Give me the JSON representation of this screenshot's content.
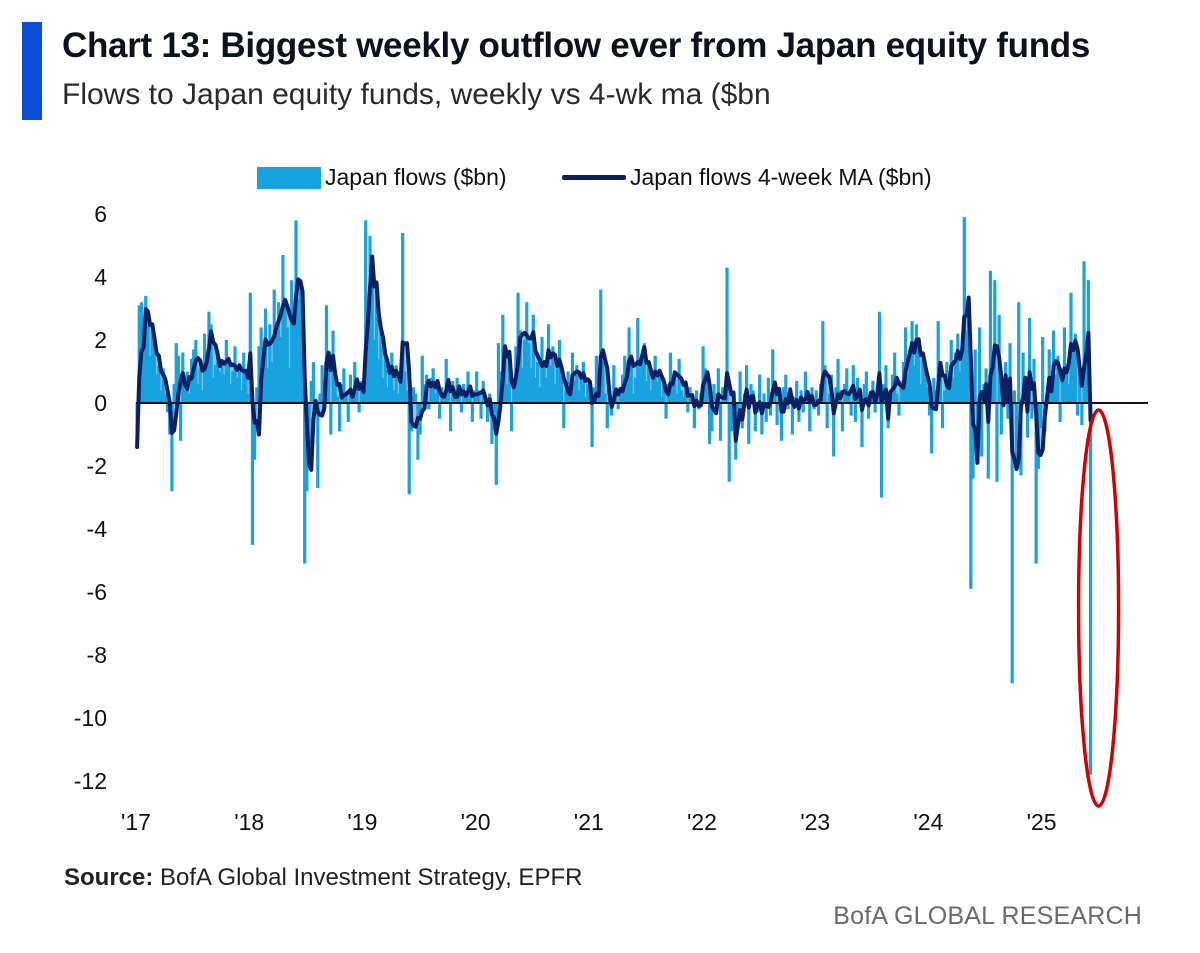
{
  "header": {
    "title": "Chart 13: Biggest weekly outflow ever from Japan equity funds",
    "subtitle": "Flows to Japan equity funds, weekly vs 4-wk ma ($bn"
  },
  "footer": {
    "source_label": "Source:",
    "source_text": " BofA Global Investment Strategy, EPFR",
    "brand": "BofA GLOBAL RESEARCH"
  },
  "colors": {
    "bars": "#17a2e0",
    "ma_line": "#0b1f63",
    "highlight": "#d40000",
    "title_bar": "#0a4fd6"
  },
  "chart_data": {
    "type": "bar",
    "legend_position": "top",
    "grid": false,
    "ylim": [
      -12,
      6
    ],
    "yticks": [
      "6",
      "4",
      "2",
      "0",
      "-2",
      "-4",
      "-6",
      "-8",
      "-10",
      "-12"
    ],
    "xticks": [
      "'17",
      "'18",
      "'19",
      "'20",
      "'21",
      "'22",
      "'23",
      "'24",
      "'25"
    ],
    "annotation": "red ellipse highlighting the latest weekly outflow",
    "series": [
      {
        "name": "Japan flows ($bn)",
        "type": "bar",
        "years": [
          {
            "year": "'17",
            "values": [
              -1.4,
              3.1,
              3.2,
              2.2,
              3.4,
              2.8,
              1.5,
              2.3,
              1.6,
              0.9,
              1.2,
              0.4,
              1.1,
              0.3,
              -0.3,
              -1.0,
              -2.8,
              0.6,
              1.9,
              1.5,
              -1.2,
              1.6,
              0.4,
              1.0,
              0.3,
              1.4,
              1.7,
              2.0,
              0.6,
              1.1,
              0.4,
              2.2,
              1.5,
              2.9,
              2.5,
              0.8,
              1.2,
              1.7,
              1.0,
              1.4,
              0.9,
              2.0,
              1.3,
              0.6,
              1.0,
              1.8,
              0.8,
              1.2,
              0.4,
              1.6,
              0.9,
              0.3
            ]
          },
          {
            "year": "'18",
            "values": [
              3.5,
              -4.5,
              -1.8,
              0.5,
              1.8,
              2.4,
              0.9,
              3.0,
              1.1,
              2.5,
              1.3,
              3.6,
              2.3,
              3.2,
              2.1,
              4.7,
              3.1,
              2.4,
              1.1,
              3.9,
              2.7,
              5.8,
              3.3,
              3.7,
              1.4,
              -5.1,
              -2.8,
              -1.3,
              0.7,
              1.3,
              -0.4,
              -2.7,
              0.3,
              1.2,
              0.5,
              3.1,
              1.6,
              -1.0,
              2.3,
              0.8,
              0.2,
              -0.9,
              0.6,
              1.1,
              0.3,
              -0.6,
              0.9,
              0.2,
              1.3,
              0.6,
              -0.3,
              0.7
            ]
          },
          {
            "year": "'19",
            "values": [
              0.4,
              5.8,
              3.2,
              5.3,
              4.3,
              2.0,
              3.7,
              1.4,
              2.4,
              0.8,
              1.6,
              0.5,
              0.9,
              1.6,
              0.4,
              1.2,
              0.3,
              0.8,
              5.4,
              1.0,
              0.4,
              -2.9,
              -0.9,
              0.5,
              0.3,
              -1.8,
              -1.0,
              1.5,
              0.6,
              0.9,
              -0.2,
              0.8,
              1.1,
              0.3,
              0.6,
              -0.5,
              0.5,
              0.2,
              1.4,
              0.8,
              -0.9,
              0.7,
              0.2,
              0.8,
              0.4,
              -0.3,
              0.6,
              0.2,
              1.0,
              0.3,
              -0.6,
              0.4
            ]
          },
          {
            "year": "'20",
            "values": [
              1.0,
              0.4,
              -0.5,
              0.7,
              0.1,
              -0.6,
              0.3,
              -1.3,
              -0.3,
              -2.6,
              1.9,
              1.0,
              2.8,
              1.5,
              0.6,
              1.6,
              -0.9,
              0.7,
              1.8,
              3.5,
              2.3,
              1.1,
              2.0,
              3.2,
              1.9,
              1.1,
              2.8,
              0.8,
              1.3,
              0.5,
              2.1,
              1.3,
              0.8,
              2.5,
              1.2,
              1.8,
              0.6,
              1.1,
              2.0,
              0.8,
              -0.8,
              0.4,
              1.0,
              0.5,
              1.6,
              0.7,
              1.2,
              0.4,
              0.9,
              1.3,
              0.2,
              0.6
            ]
          },
          {
            "year": "'21",
            "values": [
              0.6,
              -1.4,
              0.5,
              1.5,
              0.3,
              3.6,
              1.3,
              0.3,
              -0.8,
              0.4,
              -0.4,
              1.2,
              0.5,
              -0.2,
              0.3,
              0.9,
              1.5,
              0.6,
              2.4,
              1.4,
              0.3,
              0.8,
              2.7,
              1.1,
              1.4,
              1.9,
              0.7,
              1.2,
              0.4,
              0.9,
              1.5,
              0.7,
              1.0,
              0.2,
              0.8,
              -0.5,
              0.6,
              1.6,
              0.7,
              1.0,
              0.3,
              1.4,
              0.4,
              0.2,
              0.6,
              -0.3,
              0.5,
              0.2,
              -0.8,
              0.4,
              -0.2,
              0.3
            ]
          },
          {
            "year": "'22",
            "values": [
              1.8,
              1.1,
              0.7,
              -1.3,
              -0.9,
              0.6,
              0.3,
              1.1,
              -1.2,
              0.5,
              0.2,
              4.3,
              -2.5,
              -0.9,
              0.4,
              -1.8,
              -0.5,
              1.0,
              -0.8,
              0.3,
              1.2,
              -1.3,
              0.6,
              0.4,
              -0.9,
              -0.3,
              0.9,
              -1.0,
              0.3,
              -0.6,
              0.8,
              -0.4,
              1.7,
              0.5,
              -0.7,
              0.3,
              -1.2,
              0.5,
              0.9,
              -0.2,
              0.5,
              -1.0,
              0.2,
              0.7,
              -0.6,
              0.4,
              -0.3,
              1.0,
              0.3,
              -0.9,
              0.5,
              -0.2
            ]
          },
          {
            "year": "'23",
            "values": [
              0.4,
              -0.4,
              0.6,
              2.6,
              1.2,
              -0.8,
              0.3,
              0.9,
              -1.7,
              0.5,
              1.4,
              0.4,
              -0.9,
              0.6,
              1.1,
              0.3,
              -0.4,
              1.2,
              -0.6,
              0.8,
              0.3,
              -1.4,
              0.6,
              1.0,
              -0.5,
              0.2,
              0.7,
              -0.3,
              0.5,
              2.9,
              -3.0,
              0.6,
              1.2,
              -0.8,
              0.4,
              0.9,
              1.6,
              0.3,
              -0.4,
              0.7,
              1.3,
              2.4,
              0.9,
              1.7,
              2.6,
              1.2,
              2.5,
              1.8,
              0.6,
              1.4,
              1.0,
              0.5
            ]
          },
          {
            "year": "'24",
            "values": [
              -0.4,
              -1.6,
              0.8,
              0.4,
              2.6,
              1.3,
              -0.8,
              0.4,
              1.3,
              1.0,
              2.0,
              0.8,
              1.6,
              2.2,
              1.0,
              1.9,
              5.9,
              2.3,
              3.3,
              -5.9,
              -2.4,
              1.7,
              -1.0,
              2.4,
              -1.7,
              0.6,
              1.1,
              -2.4,
              4.2,
              1.6,
              3.9,
              -2.5,
              2.8,
              -1.0,
              0.4,
              1.3,
              -0.5,
              1.9,
              -8.9,
              0.4,
              -1.8,
              3.2,
              -2.3,
              1.6,
              0.7,
              -1.1,
              2.7,
              -0.5,
              1.4,
              -5.1,
              -2.1,
              -0.8
            ]
          },
          {
            "year": "'25",
            "values": [
              2.1,
              -0.9,
              0.3,
              1.7,
              0.4,
              2.3,
              0.9,
              1.5,
              -0.6,
              1.1,
              2.4,
              1.0,
              0.6,
              3.5,
              1.6,
              2.2,
              -0.4,
              1.1,
              -0.7,
              4.5,
              1.2,
              3.9,
              -11.8
            ]
          }
        ]
      },
      {
        "name": "Japan flows 4-week MA ($bn)",
        "type": "line",
        "computed_from": "4-week moving average of weekly flows"
      }
    ]
  }
}
